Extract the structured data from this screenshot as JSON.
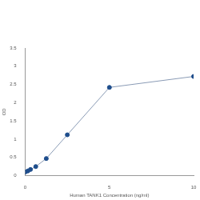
{
  "chart_data": {
    "type": "line",
    "x_label": "Human TANK1 Concentration (ng/ml)",
    "y_label": "OD",
    "x": [
      0,
      0.156,
      0.312,
      0.625,
      1.25,
      2.5,
      5,
      10
    ],
    "values": [
      0.1,
      0.13,
      0.17,
      0.25,
      0.47,
      1.12,
      2.42,
      2.72
    ],
    "color": "#1f4e8c",
    "marker": "circle",
    "xlim": [
      0,
      10
    ],
    "xticks": [
      0,
      5,
      10
    ],
    "ylim": [
      0,
      3.5
    ],
    "yticks": [
      0,
      0.5,
      1,
      1.5,
      2,
      2.5,
      3,
      3.5
    ],
    "grid": false
  }
}
